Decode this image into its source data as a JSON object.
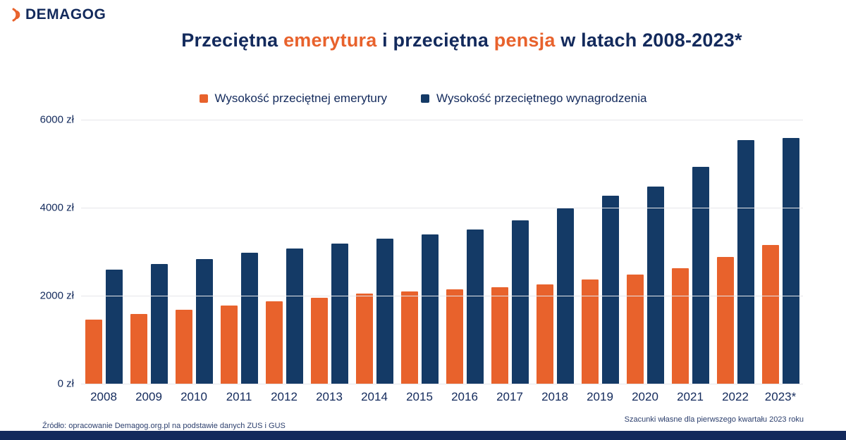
{
  "logo": {
    "text": "DEMAGOG"
  },
  "title": {
    "t1": "Przeciętna ",
    "t2": "emerytura",
    "t3": " i przeciętna ",
    "t4": "pensja",
    "t5": " w latach 2008-2023*"
  },
  "colors": {
    "orange": "#e8622c",
    "navy": "#143a66",
    "text_navy": "#132a5c"
  },
  "chart_data": {
    "type": "bar",
    "title": "Przeciętna emerytura i przeciętna pensja w latach 2008-2023*",
    "categories": [
      "2008",
      "2009",
      "2010",
      "2011",
      "2012",
      "2013",
      "2014",
      "2015",
      "2016",
      "2017",
      "2018",
      "2019",
      "2020",
      "2021",
      "2022",
      "2023*"
    ],
    "series": [
      {
        "key": "emerytura",
        "name": "Wysokość przeciętnej emerytury",
        "color": "#e8622c",
        "values": [
          1450,
          1580,
          1680,
          1780,
          1870,
          1960,
          2050,
          2100,
          2140,
          2200,
          2260,
          2370,
          2480,
          2630,
          2880,
          3150
        ]
      },
      {
        "key": "wynagrodzenie",
        "name": "Wysokość przeciętnego wynagrodzenia",
        "color": "#143a66",
        "values": [
          2590,
          2720,
          2840,
          2980,
          3080,
          3190,
          3300,
          3400,
          3510,
          3720,
          3990,
          4280,
          4480,
          4930,
          5540,
          5580
        ]
      }
    ],
    "ylim": [
      0,
      6000
    ],
    "yticks": [
      {
        "value": 0,
        "label": "0 zł"
      },
      {
        "value": 2000,
        "label": "2000 zł"
      },
      {
        "value": 4000,
        "label": "4000 zł"
      },
      {
        "value": 6000,
        "label": "6000 zł"
      }
    ],
    "grid": true,
    "legend_position": "top",
    "xlabel": "",
    "ylabel": ""
  },
  "legend": [
    {
      "label": "Wysokość przeciętnej emerytury",
      "color": "#e8622c"
    },
    {
      "label": "Wysokość przeciętnego wynagrodzenia",
      "color": "#143a66"
    }
  ],
  "footnotes": {
    "source": "Źródło: opracowanie Demagog.org.pl na podstawie danych ZUS i GUS",
    "note": "Szacunki własne dla pierwszego kwartału 2023 roku"
  }
}
